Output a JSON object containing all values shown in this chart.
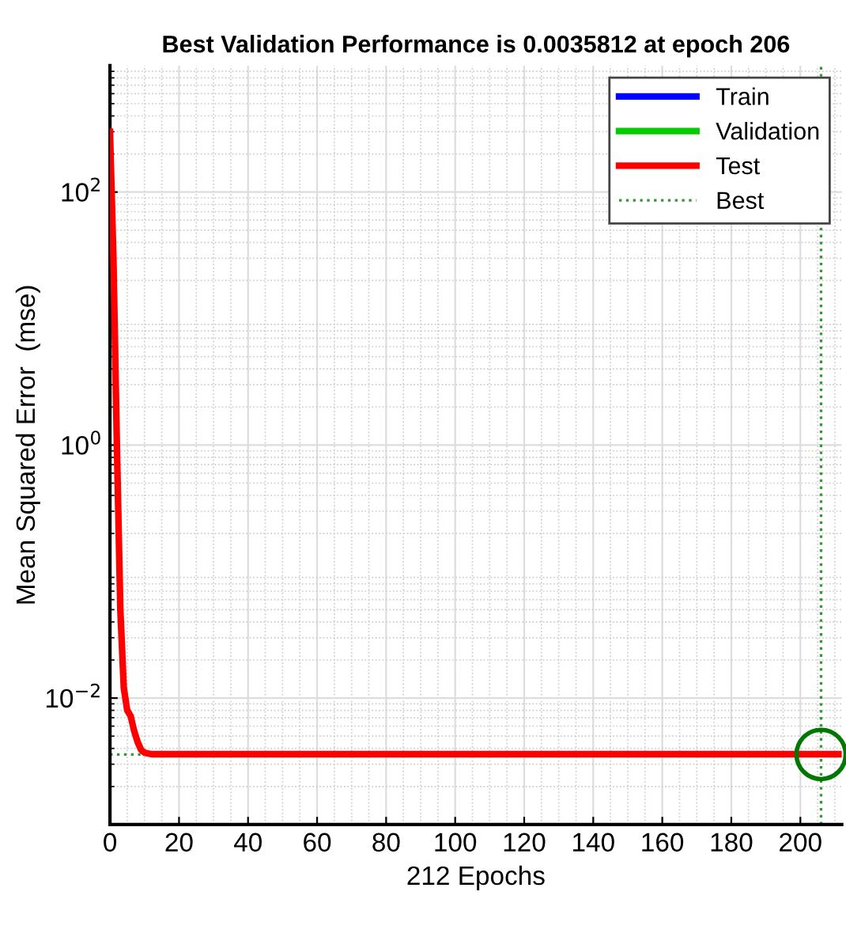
{
  "chart_data": {
    "type": "line",
    "title": "Best Validation Performance is 0.0035812 at epoch 206",
    "xlabel": "212 Epochs",
    "ylabel": "Mean Squared Error  (mse)",
    "x": [
      0,
      1,
      2,
      3,
      4,
      5,
      6,
      7,
      8,
      9,
      10,
      12,
      15,
      20,
      40,
      80,
      120,
      160,
      200,
      206,
      212
    ],
    "series": [
      {
        "name": "Train",
        "color": "#0000ff",
        "values": [
          null,
          null,
          null,
          null,
          null,
          null,
          null,
          null,
          null,
          null,
          null,
          null,
          null,
          null,
          null,
          null,
          null,
          null,
          null,
          null,
          null
        ]
      },
      {
        "name": "Validation",
        "color": "#00cc00",
        "values": [
          null,
          null,
          null,
          null,
          null,
          null,
          null,
          null,
          null,
          null,
          null,
          null,
          null,
          null,
          null,
          null,
          null,
          null,
          null,
          null,
          null
        ]
      },
      {
        "name": "Test",
        "color": "#ff0000",
        "values": [
          300,
          30,
          1,
          0.05,
          0.012,
          0.008,
          0.0072,
          0.0055,
          0.0045,
          0.0039,
          0.0037,
          0.0036,
          0.0036,
          0.0036,
          0.0036,
          0.0036,
          0.0036,
          0.0036,
          0.0036,
          0.0036,
          0.0036
        ]
      },
      {
        "type": "scatter",
        "color": "#007700",
        "marker": "circle",
        "x": [
          206
        ],
        "values": [
          0.0035812
        ]
      }
    ],
    "ref_lines": [
      {
        "axis": "x",
        "value": 206,
        "label": "Best",
        "color": "#339933",
        "line_style": "dotted"
      },
      {
        "axis": "y",
        "value": 0.0035812,
        "color": "#339933",
        "line_style": "dotted"
      }
    ],
    "log": "y",
    "xlim": [
      0,
      212
    ],
    "xticks": [
      0,
      20,
      40,
      60,
      80,
      100,
      120,
      140,
      160,
      180,
      200
    ],
    "ylim": [
      0.001,
      1000
    ],
    "yticks": [
      {
        "value": 0.01,
        "label": "10$^{−2}$"
      },
      {
        "value": 1,
        "label": "10$^{0}$"
      },
      {
        "value": 100,
        "label": "10$^{2}$"
      }
    ],
    "grid": true,
    "legend": "top right"
  }
}
